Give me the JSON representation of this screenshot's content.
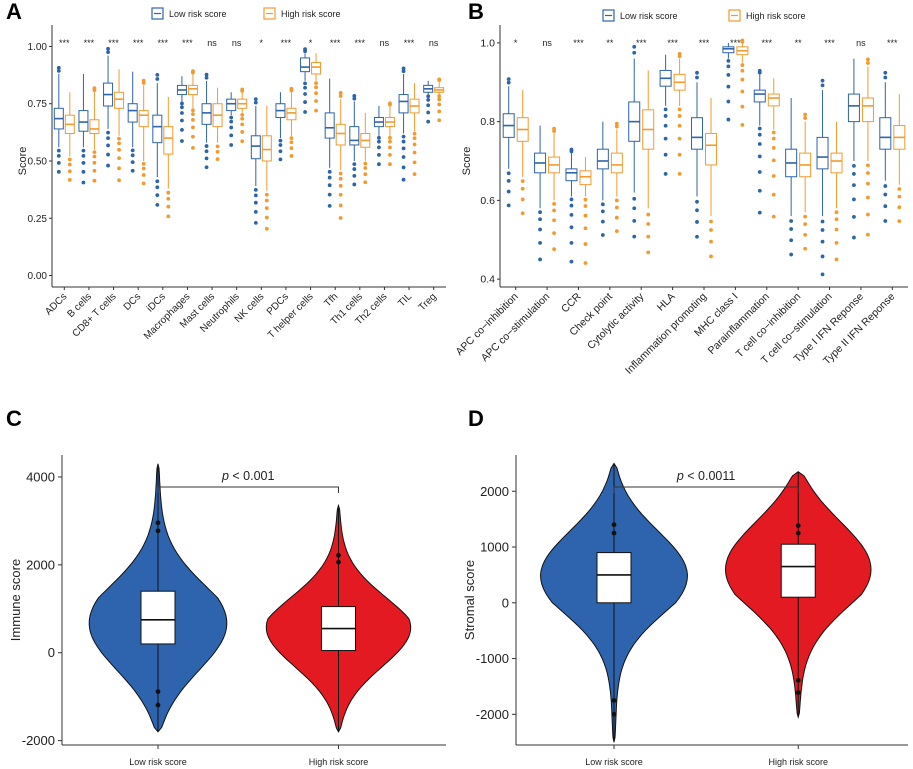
{
  "colors": {
    "low": "#2E64A8",
    "high": "#F29A2E",
    "violin_low": "#2E64AE",
    "violin_high": "#E31A22"
  },
  "legend": {
    "low_label": "Low risk score",
    "high_label": "High risk score"
  },
  "panels": {
    "a": "A",
    "b": "B",
    "c": "C",
    "d": "D"
  },
  "chart_data": [
    {
      "panel": "A",
      "type": "box",
      "title": "",
      "xlabel": "",
      "ylabel": "Score",
      "ylim": [
        -0.05,
        1.05
      ],
      "yticks": [
        "0.00",
        "0.25",
        "0.50",
        "0.75",
        "1.00"
      ],
      "categories": [
        "ADCs",
        "B cells",
        "CD8+ T cells",
        "DCs",
        "iDCs",
        "Macrophages",
        "Mast cells",
        "Neutrophils",
        "NK cells",
        "PDCs",
        "T helper cells",
        "Tfh",
        "Th1 cells",
        "Th2 cells",
        "TIL",
        "Treg"
      ],
      "significance": [
        "***",
        "***",
        "***",
        "***",
        "***",
        "***",
        "ns",
        "ns",
        "*",
        "***",
        "*",
        "***",
        "***",
        "ns",
        "***",
        "ns"
      ],
      "series": [
        {
          "name": "Low risk score",
          "stats": [
            [
              0.56,
              0.64,
              0.685,
              0.73,
              0.88
            ],
            [
              0.56,
              0.63,
              0.67,
              0.72,
              0.88
            ],
            [
              0.64,
              0.74,
              0.79,
              0.84,
              0.96
            ],
            [
              0.56,
              0.67,
              0.72,
              0.75,
              0.89
            ],
            [
              0.43,
              0.58,
              0.65,
              0.7,
              0.84
            ],
            [
              0.76,
              0.79,
              0.81,
              0.83,
              0.87
            ],
            [
              0.58,
              0.66,
              0.71,
              0.75,
              0.85
            ],
            [
              0.7,
              0.72,
              0.75,
              0.77,
              0.8
            ],
            [
              0.39,
              0.51,
              0.565,
              0.61,
              0.74
            ],
            [
              0.6,
              0.69,
              0.72,
              0.75,
              0.8
            ],
            [
              0.85,
              0.89,
              0.91,
              0.95,
              0.97
            ],
            [
              0.47,
              0.6,
              0.645,
              0.71,
              0.86
            ],
            [
              0.5,
              0.57,
              0.59,
              0.65,
              0.76
            ],
            [
              0.61,
              0.65,
              0.67,
              0.69,
              0.74
            ],
            [
              0.62,
              0.71,
              0.76,
              0.79,
              0.88
            ],
            [
              0.79,
              0.8,
              0.815,
              0.83,
              0.85
            ]
          ]
        },
        {
          "name": "High risk score",
          "stats": [
            [
              0.52,
              0.62,
              0.66,
              0.7,
              0.8
            ],
            [
              0.55,
              0.62,
              0.64,
              0.68,
              0.8
            ],
            [
              0.61,
              0.73,
              0.77,
              0.8,
              0.9
            ],
            [
              0.5,
              0.65,
              0.7,
              0.72,
              0.83
            ],
            [
              0.38,
              0.53,
              0.6,
              0.65,
              0.78
            ],
            [
              0.73,
              0.79,
              0.815,
              0.83,
              0.88
            ],
            [
              0.58,
              0.65,
              0.7,
              0.75,
              0.82
            ],
            [
              0.71,
              0.73,
              0.75,
              0.77,
              0.8
            ],
            [
              0.37,
              0.5,
              0.55,
              0.61,
              0.74
            ],
            [
              0.61,
              0.68,
              0.71,
              0.73,
              0.8
            ],
            [
              0.85,
              0.88,
              0.91,
              0.93,
              0.97
            ],
            [
              0.46,
              0.57,
              0.62,
              0.66,
              0.77
            ],
            [
              0.5,
              0.56,
              0.59,
              0.62,
              0.71
            ],
            [
              0.61,
              0.65,
              0.67,
              0.69,
              0.74
            ],
            [
              0.63,
              0.71,
              0.74,
              0.77,
              0.84
            ],
            [
              0.79,
              0.8,
              0.81,
              0.82,
              0.85
            ]
          ]
        }
      ]
    },
    {
      "panel": "B",
      "type": "box",
      "title": "",
      "xlabel": "",
      "ylabel": "Score",
      "ylim": [
        0.38,
        1.02
      ],
      "yticks": [
        "0.4",
        "0.6",
        "0.8",
        "1.0"
      ],
      "categories": [
        "APC co−inhibition",
        "APC co−stimulation",
        "CCR",
        "Check point",
        "Cytolytic activity",
        "HLA",
        "Inflammation promoting",
        "MHC class I",
        "Parainflammation",
        "T cell co−inhibition",
        "T cell co−stimulation",
        "Type I IFN Reponse",
        "Type II IFN Reponse"
      ],
      "significance": [
        "*",
        "ns",
        "***",
        "**",
        "***",
        "***",
        "***",
        "***",
        "***",
        "**",
        "***",
        "ns",
        "***"
      ],
      "series": [
        {
          "name": "Low risk score",
          "stats": [
            [
              0.68,
              0.76,
              0.79,
              0.82,
              0.89
            ],
            [
              0.58,
              0.67,
              0.695,
              0.72,
              0.79
            ],
            [
              0.61,
              0.65,
              0.67,
              0.68,
              0.72
            ],
            [
              0.6,
              0.68,
              0.7,
              0.73,
              0.8
            ],
            [
              0.62,
              0.75,
              0.8,
              0.85,
              0.96
            ],
            [
              0.84,
              0.89,
              0.91,
              0.93,
              0.97
            ],
            [
              0.61,
              0.73,
              0.76,
              0.81,
              0.9
            ],
            [
              0.96,
              0.975,
              0.985,
              0.99,
              1.0
            ],
            [
              0.79,
              0.85,
              0.87,
              0.88,
              0.92
            ],
            [
              0.56,
              0.66,
              0.695,
              0.73,
              0.86
            ],
            [
              0.56,
              0.68,
              0.71,
              0.76,
              0.88
            ],
            [
              0.7,
              0.8,
              0.84,
              0.87,
              0.96
            ],
            [
              0.65,
              0.73,
              0.76,
              0.81,
              0.9
            ]
          ]
        },
        {
          "name": "High risk score",
          "stats": [
            [
              0.66,
              0.75,
              0.78,
              0.81,
              0.88
            ],
            [
              0.6,
              0.67,
              0.69,
              0.71,
              0.77
            ],
            [
              0.61,
              0.64,
              0.66,
              0.675,
              0.71
            ],
            [
              0.61,
              0.67,
              0.69,
              0.72,
              0.78
            ],
            [
              0.58,
              0.73,
              0.78,
              0.83,
              0.93
            ],
            [
              0.84,
              0.88,
              0.9,
              0.92,
              0.96
            ],
            [
              0.56,
              0.69,
              0.74,
              0.77,
              0.86
            ],
            [
              0.95,
              0.97,
              0.98,
              0.99,
              1.0
            ],
            [
              0.78,
              0.84,
              0.86,
              0.87,
              0.91
            ],
            [
              0.57,
              0.66,
              0.69,
              0.72,
              0.8
            ],
            [
              0.58,
              0.67,
              0.7,
              0.72,
              0.8
            ],
            [
              0.7,
              0.8,
              0.84,
              0.86,
              0.94
            ],
            [
              0.64,
              0.73,
              0.76,
              0.79,
              0.87
            ]
          ]
        }
      ]
    },
    {
      "panel": "C",
      "type": "violin",
      "title": "",
      "xlabel": "",
      "ylabel": "Immune score",
      "ylim": [
        -2100,
        4500
      ],
      "yticks": [
        "-2000",
        "0",
        "2000",
        "4000"
      ],
      "categories": [
        "Low risk score",
        "High risk score"
      ],
      "annotation": "p < 0.001",
      "annotation_italic": "p",
      "annotation_rest": " < 0.001",
      "series": [
        {
          "name": "Low risk score",
          "min": -1800,
          "q1": 200,
          "median": 750,
          "q3": 1400,
          "max": 4300,
          "peak": 500
        },
        {
          "name": "High risk score",
          "min": -1800,
          "q1": 50,
          "median": 550,
          "q3": 1050,
          "max": 3350,
          "peak": 450
        }
      ]
    },
    {
      "panel": "D",
      "type": "violin",
      "title": "",
      "xlabel": "",
      "ylabel": "Stromal score",
      "ylim": [
        -2550,
        2650
      ],
      "yticks": [
        "-2000",
        "-1000",
        "0",
        "1000",
        "2000"
      ],
      "categories": [
        "Low risk score",
        "High risk score"
      ],
      "annotation": "p < 0.0011",
      "annotation_italic": "p",
      "annotation_rest": " < 0.0011",
      "series": [
        {
          "name": "Low risk score",
          "min": -2500,
          "q1": 0,
          "median": 500,
          "q3": 900,
          "max": 2500,
          "peak": 600
        },
        {
          "name": "High risk score",
          "min": -2050,
          "q1": 100,
          "median": 650,
          "q3": 1050,
          "max": 2350,
          "peak": 750
        }
      ]
    }
  ]
}
